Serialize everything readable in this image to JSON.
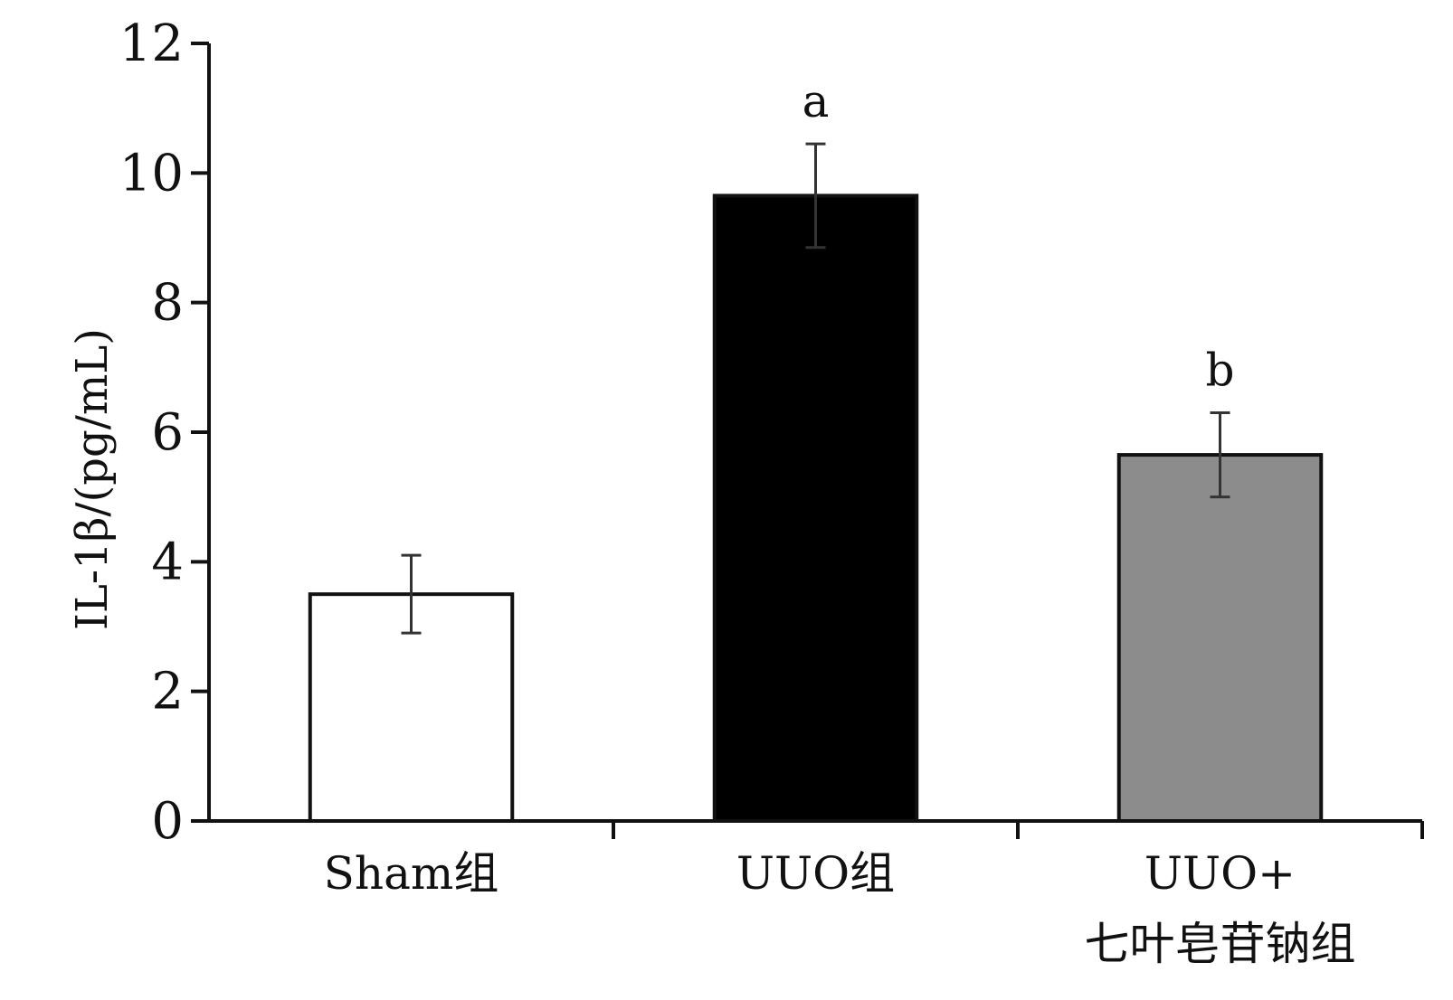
{
  "chart_data": {
    "type": "bar",
    "ylabel": "IL-1β/(pg/mL)",
    "ylim": [
      0,
      12
    ],
    "yticks": [
      0,
      2,
      4,
      6,
      8,
      10,
      12
    ],
    "categories": [
      {
        "lines": [
          "Sham组"
        ]
      },
      {
        "lines": [
          "UUO组"
        ]
      },
      {
        "lines": [
          "UUO+",
          "七叶皂苷钠组"
        ]
      }
    ],
    "values": [
      3.5,
      9.65,
      5.65
    ],
    "errors": [
      0.6,
      0.8,
      0.65
    ],
    "annotations": [
      "",
      "a",
      "b"
    ],
    "bar_colors": [
      "#ffffff",
      "#000000",
      "#8c8c8c"
    ],
    "grid": false,
    "legend": "none"
  }
}
